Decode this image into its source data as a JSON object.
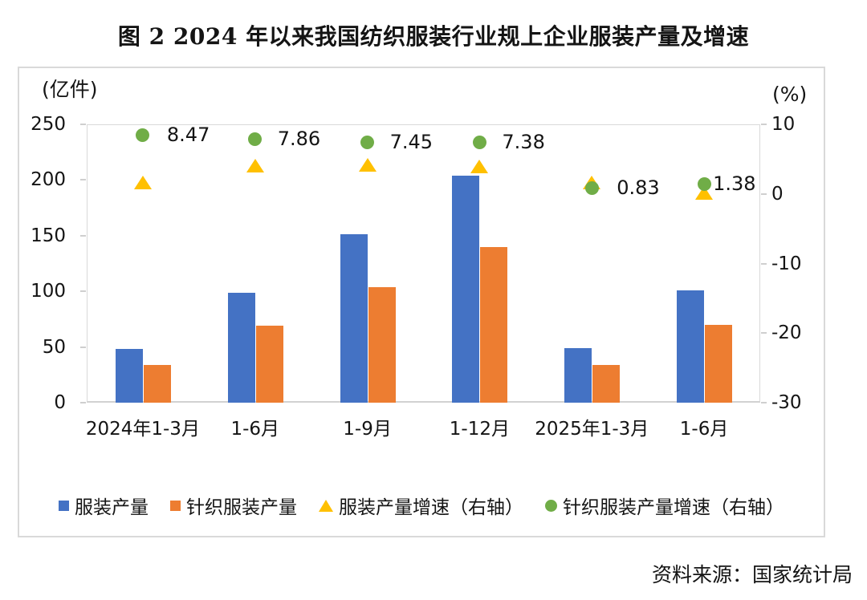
{
  "title": "图 2  2024 年以来我国纺织服装行业规上企业服装产量及增速",
  "source": "资料来源：国家统计局",
  "chart_data": {
    "type": "bar",
    "subtype": "grouped bars (left axis) with point markers (right axis), combo chart",
    "title": "图 2  2024 年以来我国纺织服装行业规上企业服装产量及增速",
    "categories": [
      "2024年1-3月",
      "1-6月",
      "1-9月",
      "1-12月",
      "2025年1-3月",
      "1-6月"
    ],
    "left_axis": {
      "unit": "(亿件)",
      "min": 0,
      "max": 250,
      "ticks": [
        250,
        200,
        150,
        100,
        50,
        0
      ]
    },
    "right_axis": {
      "unit": "(%)",
      "min": -30,
      "max": 10,
      "ticks": [
        10,
        0,
        -10,
        -20,
        -30
      ]
    },
    "grid": "off",
    "legend_position": "bottom",
    "series": [
      {
        "name": "服装产量",
        "type": "bar",
        "marker": "square",
        "axis": "left",
        "color": "#4472C4",
        "values": [
          48,
          99,
          151,
          204,
          49,
          101
        ]
      },
      {
        "name": "针织服装产量",
        "type": "bar",
        "marker": "square",
        "axis": "left",
        "color": "#ED7D31",
        "values": [
          34,
          69,
          104,
          140,
          34,
          70
        ]
      },
      {
        "name": "服装产量增速（右轴）",
        "type": "scatter",
        "marker": "triangle",
        "axis": "right",
        "color": "#FFC000",
        "values": [
          1.6,
          4.1,
          4.2,
          4.0,
          1.6,
          0.1
        ],
        "labels": [
          "",
          "",
          "",
          "",
          "",
          ""
        ]
      },
      {
        "name": "针织服装产量增速（右轴）",
        "type": "scatter",
        "marker": "circle",
        "axis": "right",
        "color": "#70AD47",
        "values": [
          8.47,
          7.86,
          7.45,
          7.38,
          0.83,
          1.38
        ],
        "labels": [
          "8.47",
          "7.86",
          "7.45",
          "7.38",
          "0.83",
          "1.38"
        ]
      }
    ]
  }
}
